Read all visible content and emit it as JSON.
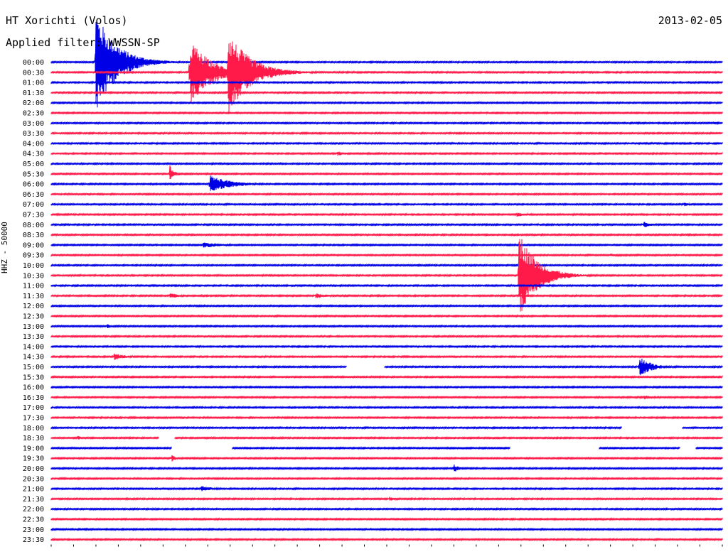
{
  "header": {
    "station": "HT Xorichti (Volos)",
    "date": "2013-02-05",
    "filter_label": "Applied filter:",
    "filter_value": "WWSSN-SP"
  },
  "channel_label": "HHZ - 50000",
  "colors": {
    "blue": "#0000e6",
    "red": "#ff1a4a",
    "grid": "#000000"
  },
  "chart_data": {
    "type": "line",
    "title": "HT Xorichti (Volos)",
    "xlabel": "",
    "ylabel": "HHZ - 50000",
    "trace_labels": [
      "00:00",
      "00:30",
      "01:00",
      "01:30",
      "02:00",
      "02:30",
      "03:00",
      "03:30",
      "04:00",
      "04:30",
      "05:00",
      "05:30",
      "06:00",
      "06:30",
      "07:00",
      "07:30",
      "08:00",
      "08:30",
      "09:00",
      "09:30",
      "10:00",
      "10:30",
      "11:00",
      "11:30",
      "12:00",
      "12:30",
      "13:00",
      "13:30",
      "14:00",
      "14:30",
      "15:00",
      "15:30",
      "16:00",
      "16:30",
      "17:00",
      "17:30",
      "18:00",
      "18:30",
      "19:00",
      "19:30",
      "20:00",
      "20:30",
      "21:00",
      "21:30",
      "22:00",
      "22:30",
      "23:00",
      "23:30"
    ],
    "trace_colors": [
      "blue",
      "red"
    ],
    "trace_minutes": 30,
    "events": [
      {
        "trace": "00:00",
        "minute": 2.0,
        "amp": 9.0,
        "dur": 1.5
      },
      {
        "trace": "00:30",
        "minute": 6.2,
        "amp": 6.0,
        "dur": 1.5
      },
      {
        "trace": "00:30",
        "minute": 7.9,
        "amp": 7.5,
        "dur": 1.6
      },
      {
        "trace": "03:00",
        "minute": 29.6,
        "amp": 0.3,
        "dur": 0.4
      },
      {
        "trace": "04:30",
        "minute": 12.8,
        "amp": 0.4,
        "dur": 0.8
      },
      {
        "trace": "05:30",
        "minute": 5.3,
        "amp": 1.6,
        "dur": 0.3
      },
      {
        "trace": "06:00",
        "minute": 7.1,
        "amp": 1.6,
        "dur": 1.5
      },
      {
        "trace": "06:30",
        "minute": 1.6,
        "amp": 0.3,
        "dur": 0.3
      },
      {
        "trace": "07:00",
        "minute": 28.3,
        "amp": 0.4,
        "dur": 0.4
      },
      {
        "trace": "07:30",
        "minute": 20.8,
        "amp": 0.4,
        "dur": 1.0
      },
      {
        "trace": "08:00",
        "minute": 26.5,
        "amp": 0.6,
        "dur": 0.5
      },
      {
        "trace": "09:00",
        "minute": 6.8,
        "amp": 0.5,
        "dur": 1.5
      },
      {
        "trace": "09:30",
        "minute": 25.0,
        "amp": 0.3,
        "dur": 1.0
      },
      {
        "trace": "10:30",
        "minute": 20.9,
        "amp": 8.0,
        "dur": 1.3
      },
      {
        "trace": "11:30",
        "minute": 5.3,
        "amp": 0.5,
        "dur": 0.8
      },
      {
        "trace": "11:30",
        "minute": 11.8,
        "amp": 0.5,
        "dur": 1.0
      },
      {
        "trace": "13:00",
        "minute": 2.5,
        "amp": 0.4,
        "dur": 0.3
      },
      {
        "trace": "14:30",
        "minute": 2.8,
        "amp": 0.6,
        "dur": 1.0
      },
      {
        "trace": "15:00",
        "minute": 26.3,
        "amp": 1.8,
        "dur": 0.9
      },
      {
        "trace": "16:30",
        "minute": 26.5,
        "amp": 0.4,
        "dur": 0.8
      },
      {
        "trace": "18:30",
        "minute": 1.2,
        "amp": 0.5,
        "dur": 0.2
      },
      {
        "trace": "19:30",
        "minute": 5.4,
        "amp": 0.6,
        "dur": 0.3
      },
      {
        "trace": "20:00",
        "minute": 18.0,
        "amp": 0.8,
        "dur": 0.4
      },
      {
        "trace": "21:00",
        "minute": 6.7,
        "amp": 0.5,
        "dur": 1.0
      },
      {
        "trace": "21:30",
        "minute": 15.1,
        "amp": 0.4,
        "dur": 0.6
      }
    ],
    "gaps": [
      {
        "trace": "15:00",
        "start": 13.2,
        "end": 14.9
      },
      {
        "trace": "18:00",
        "start": 25.5,
        "end": 28.2
      },
      {
        "trace": "18:30",
        "start": 4.8,
        "end": 5.5
      },
      {
        "trace": "19:00",
        "start": 5.4,
        "end": 8.1
      },
      {
        "trace": "19:00",
        "start": 20.5,
        "end": 24.5
      },
      {
        "trace": "19:00",
        "start": 28.1,
        "end": 28.8
      }
    ]
  }
}
